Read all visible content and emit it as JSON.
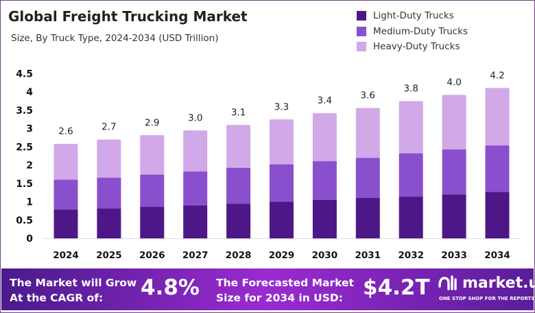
{
  "chart_data": {
    "type": "bar",
    "stacked": true,
    "title": "Global Freight Trucking Market",
    "subtitle": "Size, By Truck Type, 2024-2034 (USD Trillion)",
    "categories": [
      "2024",
      "2025",
      "2026",
      "2027",
      "2028",
      "2029",
      "2030",
      "2031",
      "2032",
      "2033",
      "2034"
    ],
    "series": [
      {
        "name": "Light-Duty Trucks",
        "color": "#4e1787",
        "values": [
          0.79,
          0.82,
          0.86,
          0.9,
          0.95,
          1.0,
          1.05,
          1.11,
          1.14,
          1.2,
          1.27
        ]
      },
      {
        "name": "Medium-Duty Trucks",
        "color": "#8a4fcc",
        "values": [
          0.81,
          0.84,
          0.88,
          0.93,
          0.98,
          1.02,
          1.06,
          1.09,
          1.18,
          1.23,
          1.27
        ]
      },
      {
        "name": "Heavy-Duty Trucks",
        "color": "#d1a8e8",
        "values": [
          0.98,
          1.04,
          1.08,
          1.12,
          1.17,
          1.23,
          1.31,
          1.36,
          1.43,
          1.49,
          1.57
        ]
      }
    ],
    "totals": [
      "2.6",
      "2.7",
      "2.9",
      "3.0",
      "3.1",
      "3.3",
      "3.4",
      "3.6",
      "3.8",
      "4.0",
      "4.2"
    ],
    "ylim": [
      0,
      4.5
    ],
    "yticks": [
      "0",
      "0.5",
      "1",
      "1.5",
      "2",
      "2.5",
      "3",
      "3.5",
      "4",
      "4.5"
    ],
    "grid": false,
    "legend_position": "top-right"
  },
  "footer": {
    "cagr_label_line1": "The Market will Grow",
    "cagr_label_line2": "At the CAGR of:",
    "cagr_value": "4.8%",
    "forecast_label_line1": "The Forecasted Market",
    "forecast_label_line2": "Size for 2034 in USD:",
    "forecast_value": "$4.2T",
    "brand": "market.us",
    "brand_tagline": "ONE STOP SHOP FOR THE REPORTS"
  }
}
